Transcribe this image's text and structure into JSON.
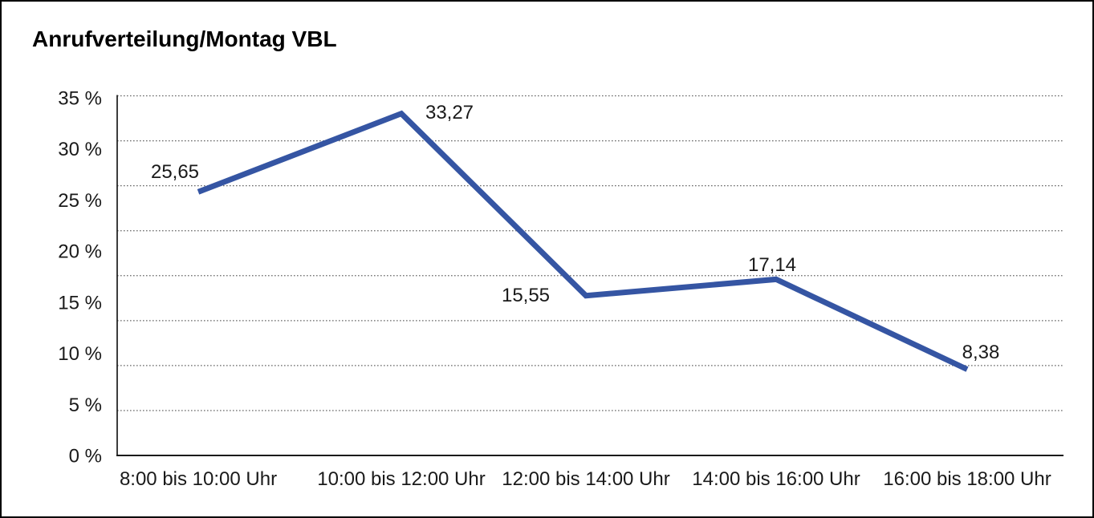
{
  "chart_data": {
    "type": "line",
    "title": "Anrufverteilung/Montag VBL",
    "categories": [
      "8:00 bis 10:00 Uhr",
      "10:00 bis 12:00 Uhr",
      "12:00 bis 14:00 Uhr",
      "14:00 bis 16:00 Uhr",
      "16:00 bis 18:00 Uhr"
    ],
    "values": [
      25.65,
      33.27,
      15.55,
      17.14,
      8.38
    ],
    "value_labels": [
      "25,65",
      "33,27",
      "15,55",
      "17,14",
      "8,38"
    ],
    "xlabel": "",
    "ylabel": "",
    "ylim": [
      0,
      35
    ],
    "y_tick_values": [
      35,
      30,
      25,
      20,
      15,
      10,
      5,
      0
    ],
    "y_tick_labels": [
      "35 %",
      "30 %",
      "25 %",
      "20 %",
      "15 %",
      "10 %",
      "5 %",
      "0 %"
    ],
    "grid": "horizontal-dotted",
    "gridline_count": 9,
    "legend": "none",
    "colors": {
      "line": "#3555A3",
      "text": "#1a1a1a",
      "title": "#000000",
      "grid_dots": "#666666",
      "axis": "#1a1a1a",
      "background": "#FFFFFF",
      "frame_border": "#000000"
    }
  }
}
